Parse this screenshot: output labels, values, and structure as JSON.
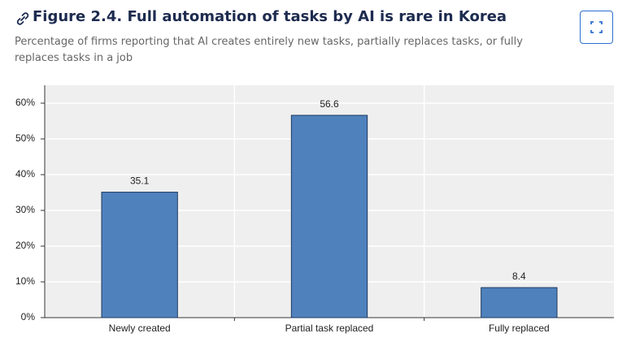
{
  "chart_data": {
    "type": "bar",
    "title": "Figure 2.4. Full automation of tasks by AI is rare in Korea",
    "subtitle": "Percentage of firms reporting that AI creates entirely new tasks, partially replaces tasks, or fully replaces tasks in a job",
    "categories": [
      "Newly created",
      "Partial task replaced",
      "Fully replaced"
    ],
    "values": [
      35.1,
      56.6,
      8.4
    ],
    "color": "#4f81bd",
    "ylim": [
      0,
      65
    ],
    "yticks": [
      {
        "value": 0,
        "label": "0%"
      },
      {
        "value": 10,
        "label": "10%"
      },
      {
        "value": 20,
        "label": "20%"
      },
      {
        "value": 30,
        "label": "30%"
      },
      {
        "value": 40,
        "label": "40%"
      },
      {
        "value": 50,
        "label": "50%"
      },
      {
        "value": 60,
        "label": "60%"
      }
    ],
    "grid": true
  }
}
